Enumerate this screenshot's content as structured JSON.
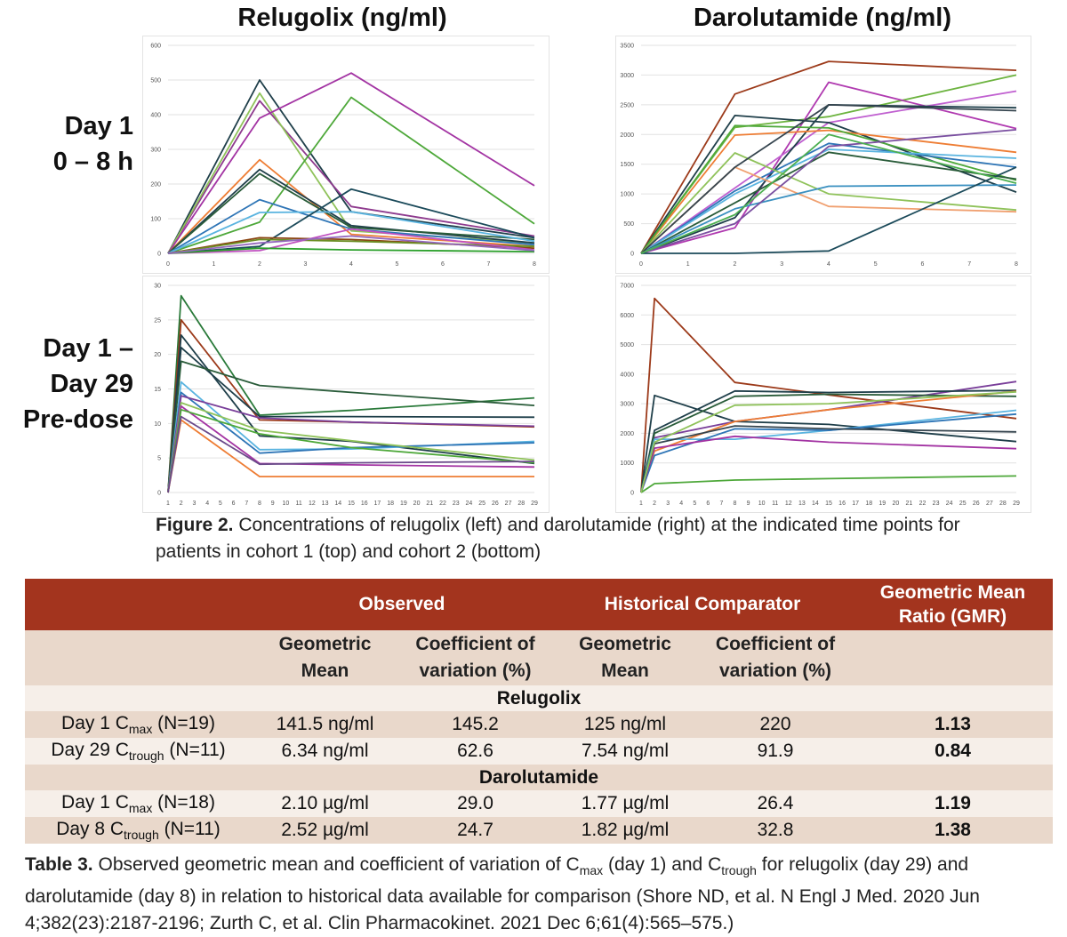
{
  "col_titles": {
    "left": "Relugolix (ng/ml)",
    "right": "Darolutamide (ng/ml)"
  },
  "row_labels": {
    "top": "Day 1\n0 – 8 h",
    "bottom": "Day 1 –\nDay 29\nPre-dose"
  },
  "chart_data": [
    {
      "type": "line",
      "title": "",
      "x": [
        0,
        2,
        4,
        8
      ],
      "xticks": [
        0,
        1,
        2,
        3,
        4,
        5,
        6,
        7,
        8
      ],
      "ylim": [
        0,
        600
      ],
      "yticks": [
        0,
        100,
        200,
        300,
        400,
        500,
        600
      ],
      "grid": true,
      "series": [
        {
          "color": "#1f3f4a",
          "values": [
            0,
            500,
            120,
            45
          ]
        },
        {
          "color": "#8e3a8e",
          "values": [
            0,
            440,
            135,
            50
          ]
        },
        {
          "color": "#8fc25a",
          "values": [
            0,
            462,
            65,
            30
          ]
        },
        {
          "color": "#a334a3",
          "values": [
            0,
            390,
            520,
            195
          ]
        },
        {
          "color": "#4ea83a",
          "values": [
            0,
            90,
            450,
            85
          ]
        },
        {
          "color": "#ee7d34",
          "values": [
            0,
            270,
            55,
            20
          ]
        },
        {
          "color": "#1f3f4a",
          "values": [
            0,
            242,
            80,
            30
          ]
        },
        {
          "color": "#2a5c3a",
          "values": [
            0,
            230,
            75,
            40
          ]
        },
        {
          "color": "#2e75b6",
          "values": [
            0,
            155,
            70,
            25
          ]
        },
        {
          "color": "#5ab4e0",
          "values": [
            0,
            118,
            120,
            35
          ]
        },
        {
          "color": "#1b4a5a",
          "values": [
            0,
            20,
            185,
            45
          ]
        },
        {
          "color": "#8b4513",
          "values": [
            0,
            45,
            40,
            15
          ]
        },
        {
          "color": "#6b8e23",
          "values": [
            0,
            40,
            35,
            20
          ]
        },
        {
          "color": "#c050c0",
          "values": [
            0,
            8,
            70,
            10
          ]
        },
        {
          "color": "#2ca02c",
          "values": [
            0,
            15,
            10,
            5
          ]
        },
        {
          "color": "#9467bd",
          "values": [
            0,
            30,
            50,
            8
          ]
        }
      ]
    },
    {
      "type": "line",
      "title": "",
      "x": [
        0,
        2,
        4,
        8
      ],
      "xticks": [
        0,
        1,
        2,
        3,
        4,
        5,
        6,
        7,
        8
      ],
      "ylim": [
        0,
        3500
      ],
      "yticks": [
        0,
        500,
        1000,
        1500,
        2000,
        2500,
        3000,
        3500
      ],
      "grid": true,
      "series": [
        {
          "color": "#9c3a1a",
          "values": [
            0,
            2680,
            3230,
            3080
          ]
        },
        {
          "color": "#6cb33f",
          "values": [
            0,
            2120,
            2300,
            3000
          ]
        },
        {
          "color": "#b03ab0",
          "values": [
            0,
            430,
            2880,
            2100
          ]
        },
        {
          "color": "#c060d0",
          "values": [
            0,
            1100,
            2200,
            2730
          ]
        },
        {
          "color": "#1f3f4a",
          "values": [
            0,
            2320,
            2200,
            1030
          ]
        },
        {
          "color": "#1f3f4a",
          "values": [
            0,
            600,
            2500,
            2450
          ]
        },
        {
          "color": "#ee7d34",
          "values": [
            0,
            1990,
            2070,
            1700
          ]
        },
        {
          "color": "#4ea83a",
          "values": [
            0,
            2150,
            2110,
            1230
          ]
        },
        {
          "color": "#2e75b6",
          "values": [
            0,
            1050,
            1850,
            1450
          ]
        },
        {
          "color": "#5ab4e0",
          "values": [
            0,
            1000,
            1750,
            1600
          ]
        },
        {
          "color": "#8fc25a",
          "values": [
            0,
            1690,
            1000,
            730
          ]
        },
        {
          "color": "#f0a070",
          "values": [
            0,
            1450,
            790,
            700
          ]
        },
        {
          "color": "#2a5c3a",
          "values": [
            0,
            850,
            1700,
            1250
          ]
        },
        {
          "color": "#3a90c0",
          "values": [
            0,
            750,
            1130,
            1150
          ]
        },
        {
          "color": "#7a4fa0",
          "values": [
            0,
            500,
            1800,
            2080
          ]
        },
        {
          "color": "#1b4a5a",
          "values": [
            0,
            0,
            40,
            1450
          ]
        },
        {
          "color": "#36454f",
          "values": [
            0,
            1450,
            2500,
            2400
          ]
        },
        {
          "color": "#4caf50",
          "values": [
            0,
            650,
            2000,
            1180
          ]
        }
      ]
    },
    {
      "type": "line",
      "title": "",
      "x": [
        1,
        2,
        8,
        15,
        29
      ],
      "xticks": [
        1,
        2,
        3,
        4,
        5,
        6,
        7,
        8,
        9,
        10,
        11,
        12,
        13,
        14,
        15,
        16,
        17,
        18,
        19,
        20,
        21,
        22,
        23,
        24,
        25,
        26,
        27,
        28,
        29
      ],
      "ylim": [
        0,
        30
      ],
      "yticks": [
        0,
        5,
        10,
        15,
        20,
        25,
        30
      ],
      "grid": true,
      "series": [
        {
          "color": "#2a7a3a",
          "values": [
            0,
            28.5,
            11.2,
            11.9,
            13.7
          ]
        },
        {
          "color": "#9c3a1a",
          "values": [
            0,
            25.0,
            10.5,
            10.2,
            9.5
          ]
        },
        {
          "color": "#1f3f4a",
          "values": [
            0,
            22.8,
            8.2,
            7.4,
            4.2
          ]
        },
        {
          "color": "#1f3f4a",
          "values": [
            0,
            21.0,
            11.0,
            11.0,
            10.9
          ]
        },
        {
          "color": "#2a5c3a",
          "values": [
            0,
            19.0,
            15.5,
            14.5,
            12.6
          ]
        },
        {
          "color": "#5ab4e0",
          "values": [
            0,
            16.0,
            6.2,
            6.3,
            7.4
          ]
        },
        {
          "color": "#2e75b6",
          "values": [
            0,
            14.5,
            5.7,
            6.5,
            7.2
          ]
        },
        {
          "color": "#7a3f9a",
          "values": [
            0,
            14.0,
            10.8,
            10.2,
            9.6
          ]
        },
        {
          "color": "#8fc25a",
          "values": [
            0,
            13.0,
            9.0,
            7.5,
            4.7
          ]
        },
        {
          "color": "#a334a3",
          "values": [
            0,
            12.5,
            4.2,
            4.0,
            3.7
          ]
        },
        {
          "color": "#4ea83a",
          "values": [
            0,
            12.0,
            8.5,
            6.5,
            4.3
          ]
        },
        {
          "color": "#ee7d34",
          "values": [
            0,
            10.5,
            2.3,
            2.3,
            2.3
          ]
        },
        {
          "color": "#6b4a8a",
          "values": [
            0,
            11.0,
            4.1,
            4.3,
            4.5
          ]
        }
      ]
    },
    {
      "type": "line",
      "title": "",
      "x": [
        1,
        2,
        8,
        15,
        29
      ],
      "xticks": [
        1,
        2,
        3,
        4,
        5,
        6,
        7,
        8,
        9,
        10,
        11,
        12,
        13,
        14,
        15,
        16,
        17,
        18,
        19,
        20,
        21,
        22,
        23,
        24,
        25,
        26,
        27,
        28,
        29
      ],
      "ylim": [
        0,
        7000
      ],
      "yticks": [
        0,
        1000,
        2000,
        3000,
        4000,
        5000,
        6000,
        7000
      ],
      "grid": true,
      "series": [
        {
          "color": "#9c3a1a",
          "values": [
            0,
            6560,
            3720,
            3300,
            2500
          ]
        },
        {
          "color": "#1f3f4a",
          "values": [
            0,
            3280,
            2400,
            2300,
            1720
          ]
        },
        {
          "color": "#7a3f9a",
          "values": [
            0,
            1850,
            2400,
            2800,
            3750
          ]
        },
        {
          "color": "#1f3f4a",
          "values": [
            0,
            2100,
            3430,
            3380,
            3450
          ]
        },
        {
          "color": "#2a5c3a",
          "values": [
            0,
            2000,
            3250,
            3320,
            3250
          ]
        },
        {
          "color": "#ee7d34",
          "values": [
            0,
            1400,
            2400,
            2800,
            3420
          ]
        },
        {
          "color": "#5ab4e0",
          "values": [
            0,
            1800,
            1800,
            2100,
            2780
          ]
        },
        {
          "color": "#2e75b6",
          "values": [
            0,
            1250,
            2150,
            2100,
            2650
          ]
        },
        {
          "color": "#a334a3",
          "values": [
            0,
            1500,
            1900,
            1700,
            1480
          ]
        },
        {
          "color": "#36454f",
          "values": [
            0,
            1650,
            2250,
            2150,
            2050
          ]
        },
        {
          "color": "#4ea83a",
          "values": [
            0,
            300,
            420,
            470,
            560
          ]
        },
        {
          "color": "#8fc25a",
          "values": [
            0,
            1700,
            2950,
            3000,
            3400
          ]
        }
      ]
    }
  ],
  "figure_caption": {
    "label": "Figure 2.",
    "text": "Concentrations of relugolix (left) and darolutamide (right) at the indicated time points for patients in cohort 1 (top) and cohort 2 (bottom)"
  },
  "table": {
    "groups": {
      "observed": "Observed",
      "historical": "Historical Comparator",
      "gmr": "Geometric Mean Ratio (GMR)"
    },
    "subheaders": {
      "geo_mean": "Geometric Mean",
      "cv": "Coefficient of variation (%)"
    },
    "sections": [
      {
        "name": "Relugolix",
        "rows": [
          {
            "pre": "Day 1 C",
            "sub": "max",
            "post": " (N=19)",
            "obs_gm": "141.5 ng/ml",
            "obs_cv": "145.2",
            "hist_gm": "125 ng/ml",
            "hist_cv": "220",
            "gmr": "1.13"
          },
          {
            "pre": "Day 29 C",
            "sub": "trough",
            "post": " (N=11)",
            "obs_gm": "6.34 ng/ml",
            "obs_cv": "62.6",
            "hist_gm": "7.54 ng/ml",
            "hist_cv": "91.9",
            "gmr": "0.84"
          }
        ]
      },
      {
        "name": "Darolutamide",
        "rows": [
          {
            "pre": "Day 1 C",
            "sub": "max",
            "post": " (N=18)",
            "obs_gm": "2.10 µg/ml",
            "obs_cv": "29.0",
            "hist_gm": "1.77 µg/ml",
            "hist_cv": "26.4",
            "gmr": "1.19"
          },
          {
            "pre": "Day 8 C",
            "sub": "trough",
            "post": " (N=11)",
            "obs_gm": "2.52 µg/ml",
            "obs_cv": "24.7",
            "hist_gm": "1.82 µg/ml",
            "hist_cv": "32.8",
            "gmr": "1.38"
          }
        ]
      }
    ]
  },
  "table_caption": {
    "label": "Table 3.",
    "t1": "Observed geometric mean and coefficient of variation of C",
    "s1": "max",
    "t2": " (day 1) and C",
    "s2": "trough",
    "t3": " for relugolix (day 29) and darolutamide (day 8) in relation to historical data available for comparison (Shore ND, et al. N Engl J Med. 2020 Jun 4;382(23):2187-2196; Zurth C, et al. Clin Pharmacokinet. 2021 Dec 6;61(4):565–575.)"
  }
}
